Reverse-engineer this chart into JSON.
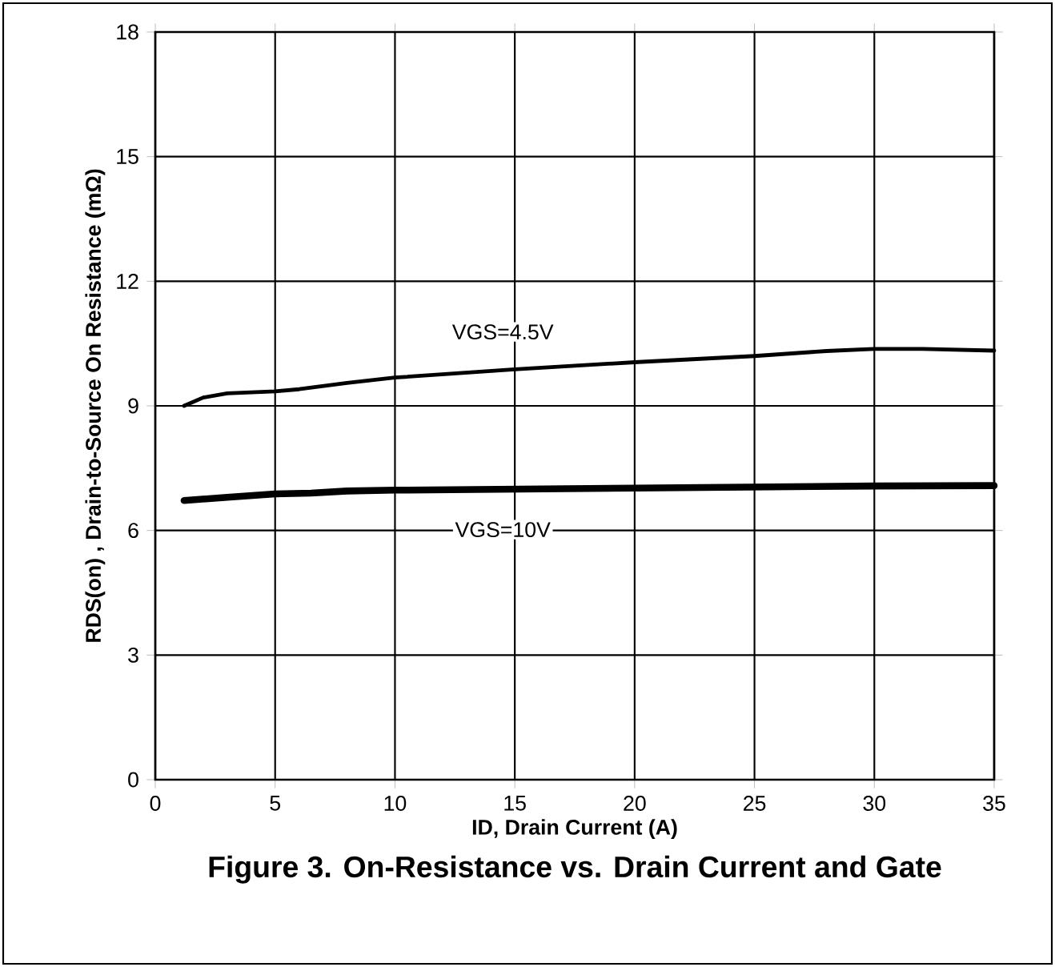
{
  "chart_data": {
    "type": "line",
    "title": "Figure 3. On-Resistance vs. Drain Current and Gate",
    "xlabel": "ID, Drain Current (A)",
    "ylabel": "RDS(on) , Drain-to-Source On Resistance (mΩ)",
    "xlim": [
      0,
      35
    ],
    "ylim": [
      0,
      18
    ],
    "xticks": [
      0,
      5,
      10,
      15,
      20,
      25,
      30,
      35
    ],
    "yticks": [
      0,
      3,
      6,
      9,
      12,
      15,
      18
    ],
    "grid": true,
    "legend": false,
    "marker": "none",
    "line_style": "solid",
    "series": [
      {
        "name": "VGS=4.5V",
        "color": "#000000",
        "x": [
          1.2,
          2,
          3,
          5,
          6,
          8,
          10,
          15,
          20,
          25,
          28,
          30,
          32,
          35
        ],
        "values": [
          9.0,
          9.2,
          9.3,
          9.35,
          9.4,
          9.55,
          9.68,
          9.88,
          10.05,
          10.2,
          10.32,
          10.37,
          10.37,
          10.33
        ]
      },
      {
        "name": "VGS=10V",
        "color": "#000000",
        "x": [
          1.2,
          3,
          5,
          6.5,
          8,
          10,
          20,
          30,
          35
        ],
        "values": [
          6.72,
          6.8,
          6.88,
          6.9,
          6.95,
          6.97,
          7.02,
          7.07,
          7.08
        ]
      }
    ]
  }
}
